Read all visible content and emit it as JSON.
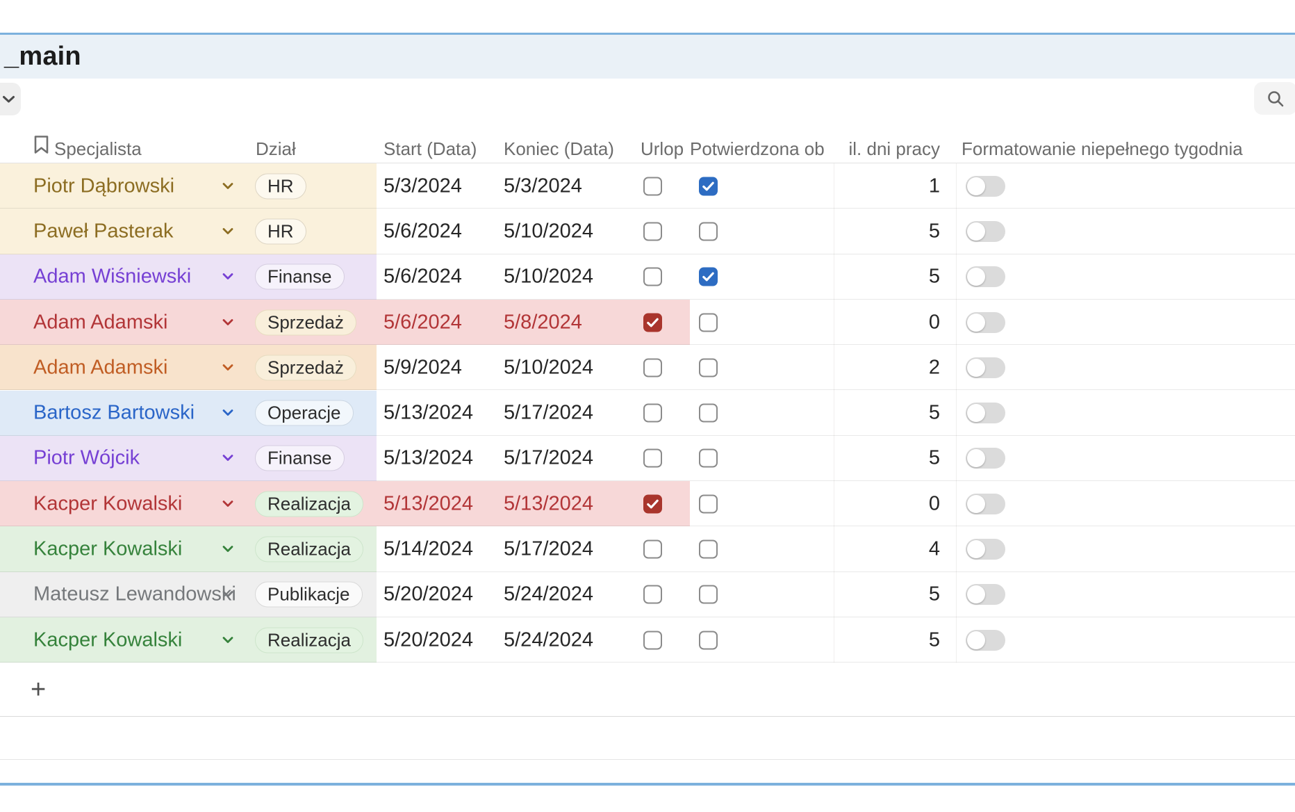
{
  "window": {
    "title": "_main"
  },
  "toolbar": {
    "collapse_icon": "chevron-down",
    "search_icon": "magnifier"
  },
  "colors": {
    "accent_blue": "#7cb1dd",
    "checkbox_checked_blue": "#2d6cc2",
    "checkbox_checked_red": "#a9352c",
    "red_row_date_text": "#b23537"
  },
  "row_themes": {
    "gold": {
      "bg": "#faf1dc",
      "text": "#8c6d22"
    },
    "purple": {
      "bg": "#ece3f6",
      "text": "#7640d4"
    },
    "red": {
      "bg": "#f7d8d8",
      "text": "#b23537"
    },
    "orange": {
      "bg": "#f8e3cc",
      "text": "#c05d24"
    },
    "blue": {
      "bg": "#dfeaf7",
      "text": "#2a65c8"
    },
    "green": {
      "bg": "#e2f1e0",
      "text": "#35823b"
    },
    "gray": {
      "bg": "#efefef",
      "text": "#75787b"
    }
  },
  "department_styles": {
    "HR": {
      "bg": "rgba(255,255,255,0.55)",
      "border": "#ddd5c4"
    },
    "Finanse": {
      "bg": "rgba(255,255,255,0.55)",
      "border": "#d5cde0"
    },
    "Sprzedaż": {
      "bg": "#f9efdb",
      "border": "#e7dcc0"
    },
    "Operacje": {
      "bg": "rgba(255,255,255,0.60)",
      "border": "#ccd7e3"
    },
    "Realizacja": {
      "bg": "#e3f3e1",
      "border": "#cde5cb"
    },
    "Publikacje": {
      "bg": "rgba(255,255,255,0.70)",
      "border": "#d8d8d8"
    }
  },
  "table": {
    "header": {
      "specjalista": "Specjalista",
      "dzial": "Dział",
      "start": "Start (Data)",
      "koniec": "Koniec (Data)",
      "urlop": "Urlop",
      "potwierdzona": "Potwierdzona ob",
      "dni": "il. dni pracy",
      "formatowanie": "Formatowanie niepełnego tygodnia"
    },
    "rows": [
      {
        "specjalista": "Piotr Dąbrowski",
        "dzial": "HR",
        "start": "5/3/2024",
        "koniec": "5/3/2024",
        "urlop": false,
        "potwierdzona": true,
        "dni": "1",
        "formatowanie": false,
        "theme": "gold"
      },
      {
        "specjalista": "Paweł Pasterak",
        "dzial": "HR",
        "start": "5/6/2024",
        "koniec": "5/10/2024",
        "urlop": false,
        "potwierdzona": false,
        "dni": "5",
        "formatowanie": false,
        "theme": "gold"
      },
      {
        "specjalista": "Adam Wiśniewski",
        "dzial": "Finanse",
        "start": "5/6/2024",
        "koniec": "5/10/2024",
        "urlop": false,
        "potwierdzona": true,
        "dni": "5",
        "formatowanie": false,
        "theme": "purple"
      },
      {
        "specjalista": "Adam Adamski",
        "dzial": "Sprzedaż",
        "start": "5/6/2024",
        "koniec": "5/8/2024",
        "urlop": true,
        "potwierdzona": false,
        "dni": "0",
        "formatowanie": false,
        "theme": "red"
      },
      {
        "specjalista": "Adam Adamski",
        "dzial": "Sprzedaż",
        "start": "5/9/2024",
        "koniec": "5/10/2024",
        "urlop": false,
        "potwierdzona": false,
        "dni": "2",
        "formatowanie": false,
        "theme": "orange"
      },
      {
        "specjalista": "Bartosz Bartowski",
        "dzial": "Operacje",
        "start": "5/13/2024",
        "koniec": "5/17/2024",
        "urlop": false,
        "potwierdzona": false,
        "dni": "5",
        "formatowanie": false,
        "theme": "blue"
      },
      {
        "specjalista": "Piotr Wójcik",
        "dzial": "Finanse",
        "start": "5/13/2024",
        "koniec": "5/17/2024",
        "urlop": false,
        "potwierdzona": false,
        "dni": "5",
        "formatowanie": false,
        "theme": "purple"
      },
      {
        "specjalista": "Kacper Kowalski",
        "dzial": "Realizacja",
        "start": "5/13/2024",
        "koniec": "5/13/2024",
        "urlop": true,
        "potwierdzona": false,
        "dni": "0",
        "formatowanie": false,
        "theme": "red"
      },
      {
        "specjalista": "Kacper Kowalski",
        "dzial": "Realizacja",
        "start": "5/14/2024",
        "koniec": "5/17/2024",
        "urlop": false,
        "potwierdzona": false,
        "dni": "4",
        "formatowanie": false,
        "theme": "green"
      },
      {
        "specjalista": "Mateusz Lewandowski",
        "dzial": "Publikacje",
        "start": "5/20/2024",
        "koniec": "5/24/2024",
        "urlop": false,
        "potwierdzona": false,
        "dni": "5",
        "formatowanie": false,
        "theme": "gray"
      },
      {
        "specjalista": "Kacper Kowalski",
        "dzial": "Realizacja",
        "start": "5/20/2024",
        "koniec": "5/24/2024",
        "urlop": false,
        "potwierdzona": false,
        "dni": "5",
        "formatowanie": false,
        "theme": "green"
      }
    ],
    "add_row_label": "+"
  }
}
